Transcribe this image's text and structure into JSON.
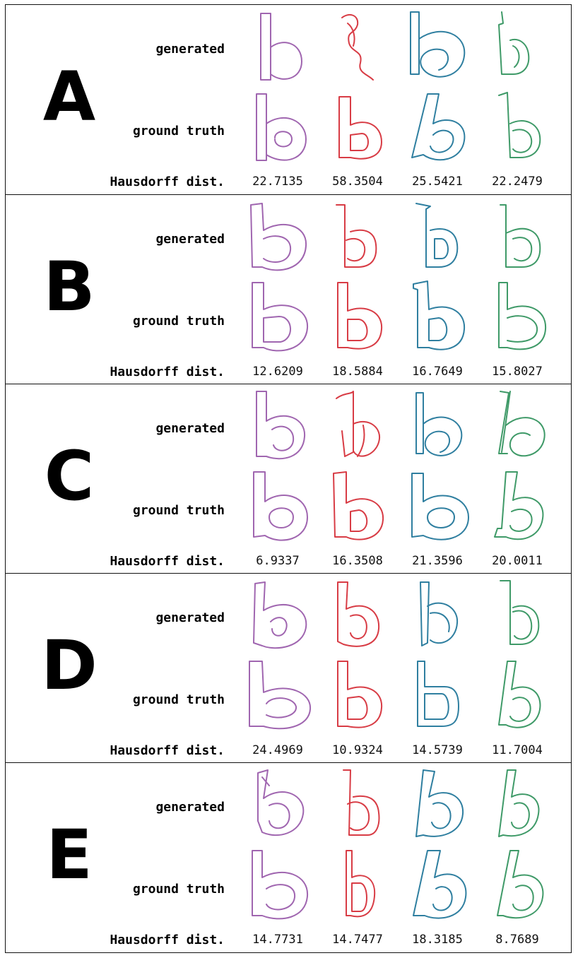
{
  "colors": [
    "#a066b0",
    "#d83c45",
    "#2f7fa0",
    "#3f9a68"
  ],
  "row_labels": {
    "generated": "generated",
    "ground_truth": "ground truth",
    "hausdorff": "Hausdorff dist."
  },
  "panels": [
    {
      "letter": "A",
      "distances": [
        "22.7135",
        "58.3504",
        "25.5421",
        "22.2479"
      ]
    },
    {
      "letter": "B",
      "distances": [
        "12.6209",
        "18.5884",
        "16.7649",
        "15.8027"
      ]
    },
    {
      "letter": "C",
      "distances": [
        "6.9337",
        "16.3508",
        "21.3596",
        "20.0011"
      ]
    },
    {
      "letter": "D",
      "distances": [
        "24.4969",
        "10.9324",
        "14.5739",
        "11.7004"
      ]
    },
    {
      "letter": "E",
      "distances": [
        "14.7731",
        "14.7477",
        "18.3185",
        "8.7689"
      ]
    }
  ]
}
